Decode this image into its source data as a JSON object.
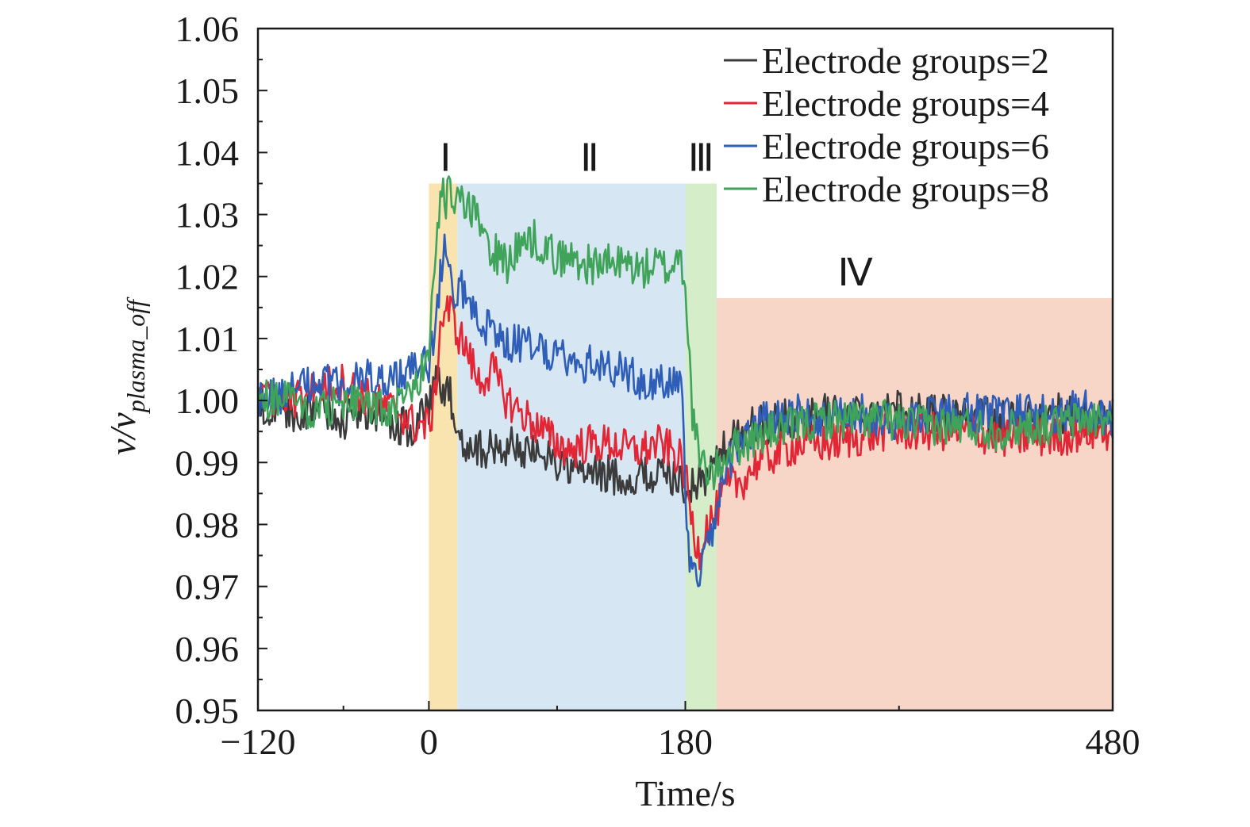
{
  "chart_data": {
    "type": "line",
    "title": "",
    "xlabel": "Time/s",
    "ylabel_main": "v/v",
    "ylabel_sub": "plasma_off",
    "xlim": [
      -120,
      480
    ],
    "ylim": [
      0.95,
      1.06
    ],
    "x_ticks": [
      -120,
      0,
      180,
      480
    ],
    "x_tick_labels": [
      "−120",
      "0",
      "180",
      "480"
    ],
    "x_minor_ticks": [
      -60,
      90,
      330
    ],
    "y_ticks": [
      0.95,
      0.96,
      0.97,
      0.98,
      0.99,
      1.0,
      1.01,
      1.02,
      1.03,
      1.04,
      1.05,
      1.06
    ],
    "y_tick_labels": [
      "0.95",
      "0.96",
      "0.97",
      "0.98",
      "0.99",
      "1.00",
      "1.01",
      "1.02",
      "1.03",
      "1.04",
      "1.05",
      "1.06"
    ],
    "grid": false,
    "legend_position": "top-right",
    "regions": [
      {
        "label": "Ⅰ",
        "x0": 0,
        "x1": 20,
        "y0": 0.95,
        "y1": 1.035,
        "color": "#f9e4b0"
      },
      {
        "label": "Ⅱ",
        "x0": 20,
        "x1": 180,
        "y0": 0.95,
        "y1": 1.035,
        "color": "#d6e6f3"
      },
      {
        "label": "Ⅲ",
        "x0": 180,
        "x1": 202,
        "y0": 0.95,
        "y1": 1.035,
        "color": "#d5edc9"
      },
      {
        "label": "Ⅳ",
        "x0": 202,
        "x1": 480,
        "y0": 0.95,
        "y1": 1.0165,
        "color": "#f7d5c7"
      }
    ],
    "series": [
      {
        "name": "Electrode groups=2",
        "color": "#3b3b3b",
        "x": [
          -120,
          -100,
          -80,
          -60,
          -40,
          -20,
          -10,
          0,
          3,
          6,
          10,
          14,
          18,
          22,
          26,
          30,
          40,
          50,
          60,
          70,
          80,
          90,
          100,
          110,
          120,
          130,
          140,
          150,
          160,
          170,
          178,
          182,
          186,
          190,
          195,
          200,
          205,
          210,
          215,
          220,
          230,
          240,
          250,
          260,
          280,
          300,
          320,
          340,
          360,
          380,
          400,
          420,
          440,
          460,
          480
        ],
        "y": [
          1.0,
          0.997,
          0.999,
          0.997,
          0.998,
          0.996,
          0.995,
          0.999,
          1.001,
          1.003,
          1.0,
          1.002,
          0.996,
          0.994,
          0.993,
          0.993,
          0.992,
          0.992,
          0.993,
          0.991,
          0.992,
          0.99,
          0.989,
          0.988,
          0.988,
          0.988,
          0.987,
          0.988,
          0.988,
          0.988,
          0.987,
          0.985,
          0.986,
          0.988,
          0.987,
          0.99,
          0.991,
          0.993,
          0.994,
          0.995,
          0.996,
          0.996,
          0.997,
          0.997,
          0.998,
          0.998,
          0.999,
          0.998,
          0.998,
          0.998,
          0.997,
          0.997,
          0.998,
          0.997,
          0.997
        ]
      },
      {
        "name": "Electrode groups=4",
        "color": "#e32636",
        "x": [
          -120,
          -100,
          -80,
          -60,
          -40,
          -20,
          -10,
          0,
          4,
          8,
          12,
          16,
          20,
          25,
          30,
          35,
          40,
          45,
          50,
          55,
          60,
          65,
          70,
          80,
          90,
          100,
          110,
          120,
          130,
          140,
          150,
          160,
          170,
          178,
          182,
          186,
          190,
          195,
          200,
          205,
          210,
          220,
          230,
          240,
          250,
          260,
          280,
          300,
          320,
          340,
          360,
          380,
          400,
          420,
          440,
          460,
          480
        ],
        "y": [
          1.0,
          1.0,
          1.002,
          1.003,
          1.0,
          0.998,
          0.996,
          0.996,
          1.0,
          1.012,
          1.015,
          1.014,
          1.011,
          1.009,
          1.006,
          1.003,
          1.004,
          1.005,
          1.002,
          1.0,
          0.999,
          0.998,
          0.997,
          0.995,
          0.993,
          0.992,
          0.993,
          0.993,
          0.993,
          0.992,
          0.992,
          0.993,
          0.992,
          0.99,
          0.985,
          0.978,
          0.976,
          0.98,
          0.981,
          0.984,
          0.986,
          0.987,
          0.99,
          0.991,
          0.992,
          0.993,
          0.993,
          0.994,
          0.995,
          0.995,
          0.995,
          0.995,
          0.994,
          0.994,
          0.994,
          0.995,
          0.995
        ]
      },
      {
        "name": "Electrode groups=6",
        "color": "#2e5eb8",
        "x": [
          -120,
          -100,
          -80,
          -60,
          -40,
          -20,
          -10,
          0,
          4,
          8,
          11,
          14,
          18,
          22,
          26,
          30,
          35,
          40,
          50,
          60,
          70,
          80,
          90,
          100,
          110,
          120,
          130,
          140,
          150,
          160,
          170,
          176,
          178,
          180,
          183,
          186,
          190,
          195,
          200,
          205,
          210,
          220,
          230,
          240,
          260,
          280,
          300,
          320,
          340,
          360,
          380,
          400,
          420,
          440,
          460,
          480
        ],
        "y": [
          1.0,
          1.001,
          1.003,
          1.002,
          1.004,
          1.004,
          1.005,
          1.006,
          1.012,
          1.02,
          1.026,
          1.022,
          1.018,
          1.019,
          1.017,
          1.015,
          1.013,
          1.012,
          1.01,
          1.009,
          1.009,
          1.008,
          1.008,
          1.007,
          1.006,
          1.006,
          1.005,
          1.004,
          1.003,
          1.003,
          1.002,
          1.004,
          1.002,
          0.985,
          0.973,
          0.971,
          0.972,
          0.976,
          0.98,
          0.987,
          0.99,
          0.994,
          0.996,
          0.997,
          0.998,
          0.997,
          0.998,
          0.997,
          0.997,
          0.998,
          0.998,
          0.998,
          0.998,
          0.998,
          0.999,
          0.997
        ]
      },
      {
        "name": "Electrode groups=8",
        "color": "#3fa35a",
        "x": [
          -120,
          -100,
          -80,
          -60,
          -40,
          -20,
          -10,
          0,
          3,
          6,
          9,
          12,
          15,
          18,
          22,
          26,
          30,
          35,
          40,
          45,
          50,
          55,
          60,
          65,
          70,
          75,
          80,
          85,
          90,
          100,
          110,
          120,
          130,
          140,
          150,
          160,
          170,
          175,
          180,
          182,
          185,
          190,
          195,
          200,
          205,
          210,
          220,
          230,
          240,
          260,
          280,
          300,
          320,
          340,
          360,
          380,
          400,
          420,
          440,
          460,
          480
        ],
        "y": [
          1.0,
          1.0,
          0.998,
          1.0,
          0.999,
          0.999,
          1.002,
          1.008,
          1.017,
          1.026,
          1.033,
          1.032,
          1.034,
          1.032,
          1.032,
          1.031,
          1.03,
          1.029,
          1.026,
          1.024,
          1.023,
          1.022,
          1.024,
          1.025,
          1.026,
          1.026,
          1.025,
          1.024,
          1.023,
          1.023,
          1.022,
          1.022,
          1.022,
          1.022,
          1.021,
          1.022,
          1.021,
          1.024,
          1.02,
          1.01,
          0.998,
          0.99,
          0.989,
          0.988,
          0.99,
          0.992,
          0.993,
          0.994,
          0.995,
          0.996,
          0.997,
          0.997,
          0.997,
          0.996,
          0.996,
          0.996,
          0.995,
          0.996,
          0.996,
          0.997,
          0.997
        ]
      }
    ]
  }
}
